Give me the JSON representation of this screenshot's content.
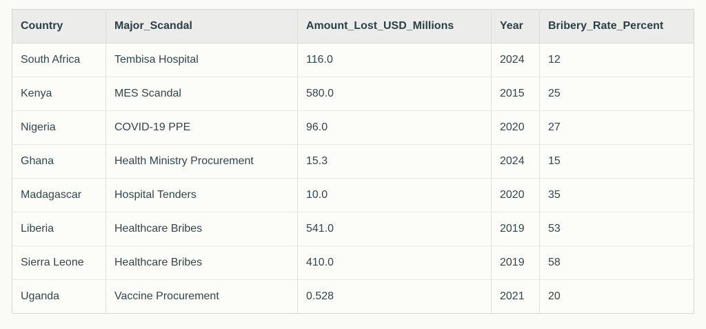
{
  "chart_data": {
    "type": "table",
    "columns": [
      "Country",
      "Major_Scandal",
      "Amount_Lost_USD_Millions",
      "Year",
      "Bribery_Rate_Percent"
    ],
    "rows": [
      [
        "South Africa",
        "Tembisa Hospital",
        "116.0",
        "2024",
        "12"
      ],
      [
        "Kenya",
        "MES Scandal",
        "580.0",
        "2015",
        "25"
      ],
      [
        "Nigeria",
        "COVID-19 PPE",
        "96.0",
        "2020",
        "27"
      ],
      [
        "Ghana",
        "Health Ministry Procurement",
        "15.3",
        "2024",
        "15"
      ],
      [
        "Madagascar",
        "Hospital Tenders",
        "10.0",
        "2020",
        "35"
      ],
      [
        "Liberia",
        "Healthcare Bribes",
        "541.0",
        "2019",
        "53"
      ],
      [
        "Sierra Leone",
        "Healthcare Bribes",
        "410.0",
        "2019",
        "58"
      ],
      [
        "Uganda",
        "Vaccine Procurement",
        "0.528",
        "2021",
        "20"
      ]
    ],
    "title": "",
    "legend": null,
    "grid": true
  },
  "colors": {
    "page_background": "#fafaf6",
    "cell_background": "#fcfcf8",
    "header_background": "#ecedeb",
    "text": "#31464c",
    "header_text": "#2b4046",
    "outer_border": "#d5d7d3",
    "column_divider": "#dee0db",
    "row_divider": "#e7e9e3"
  }
}
